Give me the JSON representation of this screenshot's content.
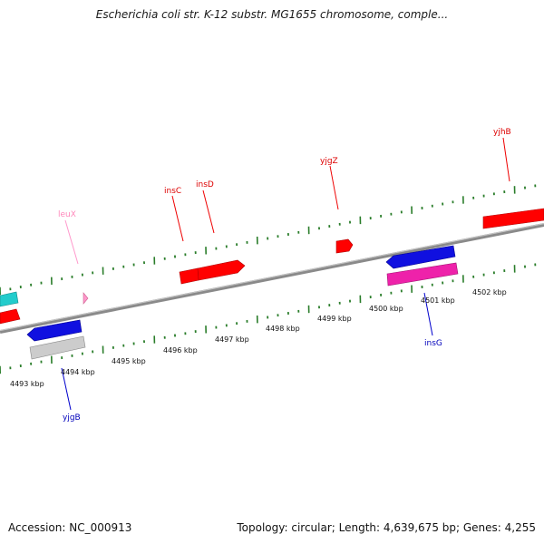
{
  "title": "Escherichia coli str. K-12 substr. MG1655 chromosome, comple...",
  "footer": {
    "accession": "Accession: NC_000913",
    "summary": "Topology: circular; Length: 4,639,675 bp; Genes: 4,255"
  },
  "colors": {
    "backbone": "#808080",
    "tick": "#2a7d2a",
    "forward_gene": "#ff0000",
    "reverse_gene": "#1010e0",
    "trna": "#ff99cc",
    "other_gene": "#cccccc",
    "cyan_gene": "#22cccc",
    "magenta_gene": "#ee22aa"
  },
  "ruler": {
    "labels": [
      "4493 kbp",
      "4494 kbp",
      "4495 kbp",
      "4496 kbp",
      "4497 kbp",
      "4498 kbp",
      "4499 kbp",
      "4500 kbp",
      "4501 kbp",
      "4502 kbp"
    ]
  },
  "gene_labels": [
    {
      "text": "yjhB",
      "strand": "forward"
    },
    {
      "text": "yjgZ",
      "strand": "forward"
    },
    {
      "text": "insC",
      "strand": "forward"
    },
    {
      "text": "insD",
      "strand": "forward"
    },
    {
      "text": "leuX",
      "strand": "trna"
    },
    {
      "text": "insG",
      "strand": "reverse"
    },
    {
      "text": "yjgB",
      "strand": "reverse"
    }
  ]
}
